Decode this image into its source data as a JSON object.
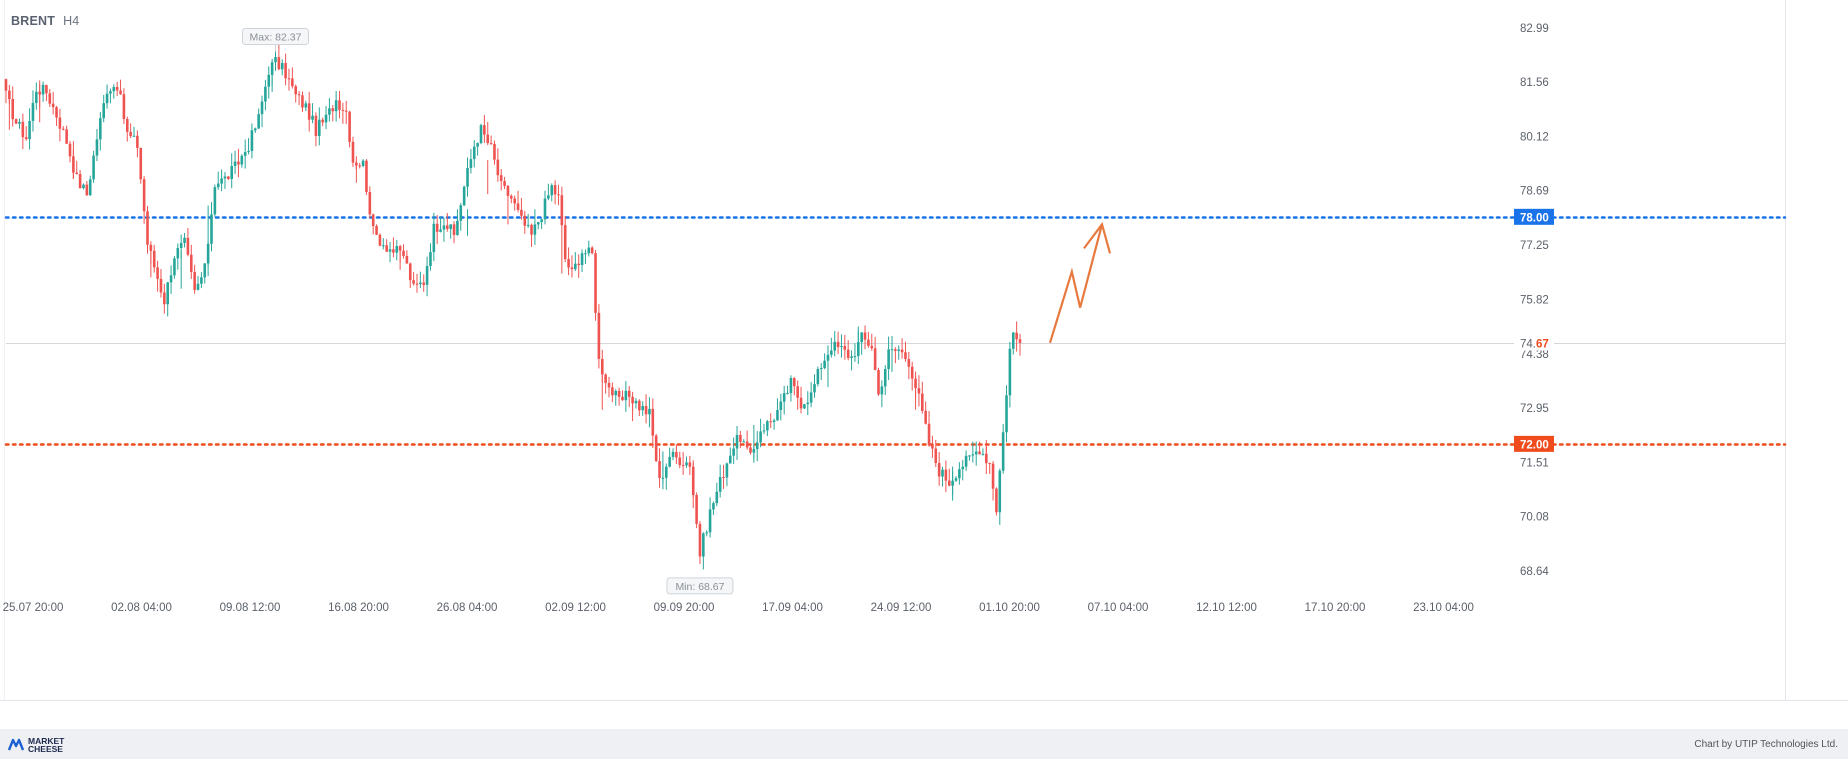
{
  "header": {
    "symbol": "BRENT",
    "timeframe": "H4"
  },
  "footer": {
    "brand_line1": "MARKET",
    "brand_line2": "CHEESE",
    "credit": "Chart by UTIP Technologies Ltd."
  },
  "chart_data": {
    "type": "candlestick",
    "symbol": "BRENT",
    "timeframe": "H4",
    "y_ticks": [
      "82.99",
      "81.56",
      "80.12",
      "78.69",
      "77.25",
      "75.82",
      "74.38",
      "72.95",
      "71.51",
      "70.08",
      "68.64"
    ],
    "x_ticks": [
      "25.07 20:00",
      "02.08 04:00",
      "09.08 12:00",
      "16.08 20:00",
      "26.08 04:00",
      "02.09 12:00",
      "09.09 20:00",
      "17.09 04:00",
      "24.09 12:00",
      "01.10 20:00",
      "07.10 04:00",
      "12.10 12:00",
      "17.10 20:00",
      "23.10 04:00"
    ],
    "ylim": [
      68.3,
      83.5
    ],
    "max_marker": {
      "label": "Max: 82.37",
      "value": 82.37
    },
    "min_marker": {
      "label": "Min: 68.67",
      "value": 68.67
    },
    "current_price": {
      "value": 74.67,
      "label_main": "74.",
      "label_frac": "67"
    },
    "levels": [
      {
        "value": 78.0,
        "label": "78.00",
        "color": "#1a73e8"
      },
      {
        "value": 72.0,
        "label": "72.00",
        "color": "#ef4b1c"
      }
    ],
    "projection": {
      "color": "#e8793e",
      "points": [
        [
          74.67,
          0
        ],
        [
          76.55,
          0.42
        ],
        [
          75.6,
          0.58
        ],
        [
          77.8,
          1.0
        ]
      ]
    },
    "up_color": "#26a69a",
    "down_color": "#ef5350",
    "path": [
      [
        0,
        81.2
      ],
      [
        3,
        80.5
      ],
      [
        6,
        80.1
      ],
      [
        9,
        81.4
      ],
      [
        12,
        81.3
      ],
      [
        15,
        80.7
      ],
      [
        18,
        80.0
      ],
      [
        21,
        79.0
      ],
      [
        24,
        78.6
      ],
      [
        27,
        80.1
      ],
      [
        30,
        81.4
      ],
      [
        33,
        81.5
      ],
      [
        36,
        80.2
      ],
      [
        39,
        79.9
      ],
      [
        42,
        77.3
      ],
      [
        44,
        76.7
      ],
      [
        47,
        75.8
      ],
      [
        50,
        77.0
      ],
      [
        53,
        77.3
      ],
      [
        56,
        76.0
      ],
      [
        59,
        76.6
      ],
      [
        62,
        78.9
      ],
      [
        65,
        79.0
      ],
      [
        68,
        79.3
      ],
      [
        72,
        79.9
      ],
      [
        75,
        80.6
      ],
      [
        78,
        81.9
      ],
      [
        80,
        82.1
      ],
      [
        83,
        81.8
      ],
      [
        86,
        81.2
      ],
      [
        89,
        80.9
      ],
      [
        92,
        80.3
      ],
      [
        95,
        80.6
      ],
      [
        98,
        81.1
      ],
      [
        101,
        80.8
      ],
      [
        103,
        79.5
      ],
      [
        106,
        79.4
      ],
      [
        109,
        77.6
      ],
      [
        112,
        77.3
      ],
      [
        115,
        77.1
      ],
      [
        118,
        77.0
      ],
      [
        121,
        76.1
      ],
      [
        124,
        76.3
      ],
      [
        127,
        77.7
      ],
      [
        130,
        77.9
      ],
      [
        133,
        77.5
      ],
      [
        136,
        78.8
      ],
      [
        139,
        79.9
      ],
      [
        141,
        80.3
      ],
      [
        144,
        79.8
      ],
      [
        147,
        78.8
      ],
      [
        150,
        78.5
      ],
      [
        153,
        77.9
      ],
      [
        156,
        77.5
      ],
      [
        159,
        78.1
      ],
      [
        162,
        78.8
      ],
      [
        164,
        78.5
      ],
      [
        166,
        76.9
      ],
      [
        168,
        76.5
      ],
      [
        171,
        77.1
      ],
      [
        174,
        77.0
      ],
      [
        176,
        74.2
      ],
      [
        179,
        73.5
      ],
      [
        182,
        73.1
      ],
      [
        185,
        73.3
      ],
      [
        188,
        73.0
      ],
      [
        191,
        72.8
      ],
      [
        194,
        71.0
      ],
      [
        197,
        71.7
      ],
      [
        200,
        71.6
      ],
      [
        203,
        71.5
      ],
      [
        206,
        69.1
      ],
      [
        209,
        70.2
      ],
      [
        212,
        71.0
      ],
      [
        215,
        71.8
      ],
      [
        218,
        72.2
      ],
      [
        221,
        71.6
      ],
      [
        224,
        72.4
      ],
      [
        227,
        72.6
      ],
      [
        230,
        73.0
      ],
      [
        233,
        73.6
      ],
      [
        236,
        73.1
      ],
      [
        239,
        73.3
      ],
      [
        242,
        74.1
      ],
      [
        245,
        74.6
      ],
      [
        248,
        74.5
      ],
      [
        251,
        74.3
      ],
      [
        254,
        74.8
      ],
      [
        257,
        74.6
      ],
      [
        259,
        73.3
      ],
      [
        262,
        74.4
      ],
      [
        265,
        74.5
      ],
      [
        268,
        74.2
      ],
      [
        271,
        73.2
      ],
      [
        274,
        72.0
      ],
      [
        277,
        71.3
      ],
      [
        280,
        71.0
      ],
      [
        283,
        71.4
      ],
      [
        286,
        71.6
      ],
      [
        289,
        71.9
      ],
      [
        292,
        71.5
      ],
      [
        294,
        70.3
      ],
      [
        296,
        72.3
      ],
      [
        298,
        74.5
      ],
      [
        299,
        74.9
      ],
      [
        301,
        74.67
      ]
    ],
    "overlays": [
      [
        1,
        80.3,
        81.2
      ],
      [
        10,
        80.5,
        81.5
      ],
      [
        20,
        79.0,
        80.0
      ],
      [
        43,
        76.4,
        77.2
      ],
      [
        52,
        76.1,
        77.1
      ],
      [
        60,
        76.7,
        78.3
      ],
      [
        79,
        81.3,
        82.1
      ],
      [
        104,
        78.9,
        79.6
      ],
      [
        117,
        76.6,
        77.2
      ],
      [
        137,
        77.5,
        78.2
      ],
      [
        143,
        78.6,
        79.5
      ],
      [
        149,
        77.8,
        78.6
      ],
      [
        157,
        77.5,
        78.2
      ],
      [
        165,
        76.5,
        78.3
      ],
      [
        177,
        72.9,
        73.8
      ],
      [
        186,
        72.6,
        73.2
      ],
      [
        195,
        70.8,
        71.8
      ],
      [
        204,
        70.3,
        71.5
      ],
      [
        222,
        71.5,
        72.5
      ],
      [
        244,
        73.5,
        74.6
      ],
      [
        253,
        74.5,
        75.1
      ],
      [
        263,
        73.9,
        74.6
      ],
      [
        270,
        72.9,
        73.8
      ],
      [
        281,
        70.5,
        71.4
      ],
      [
        291,
        71.2,
        72.1
      ]
    ]
  }
}
